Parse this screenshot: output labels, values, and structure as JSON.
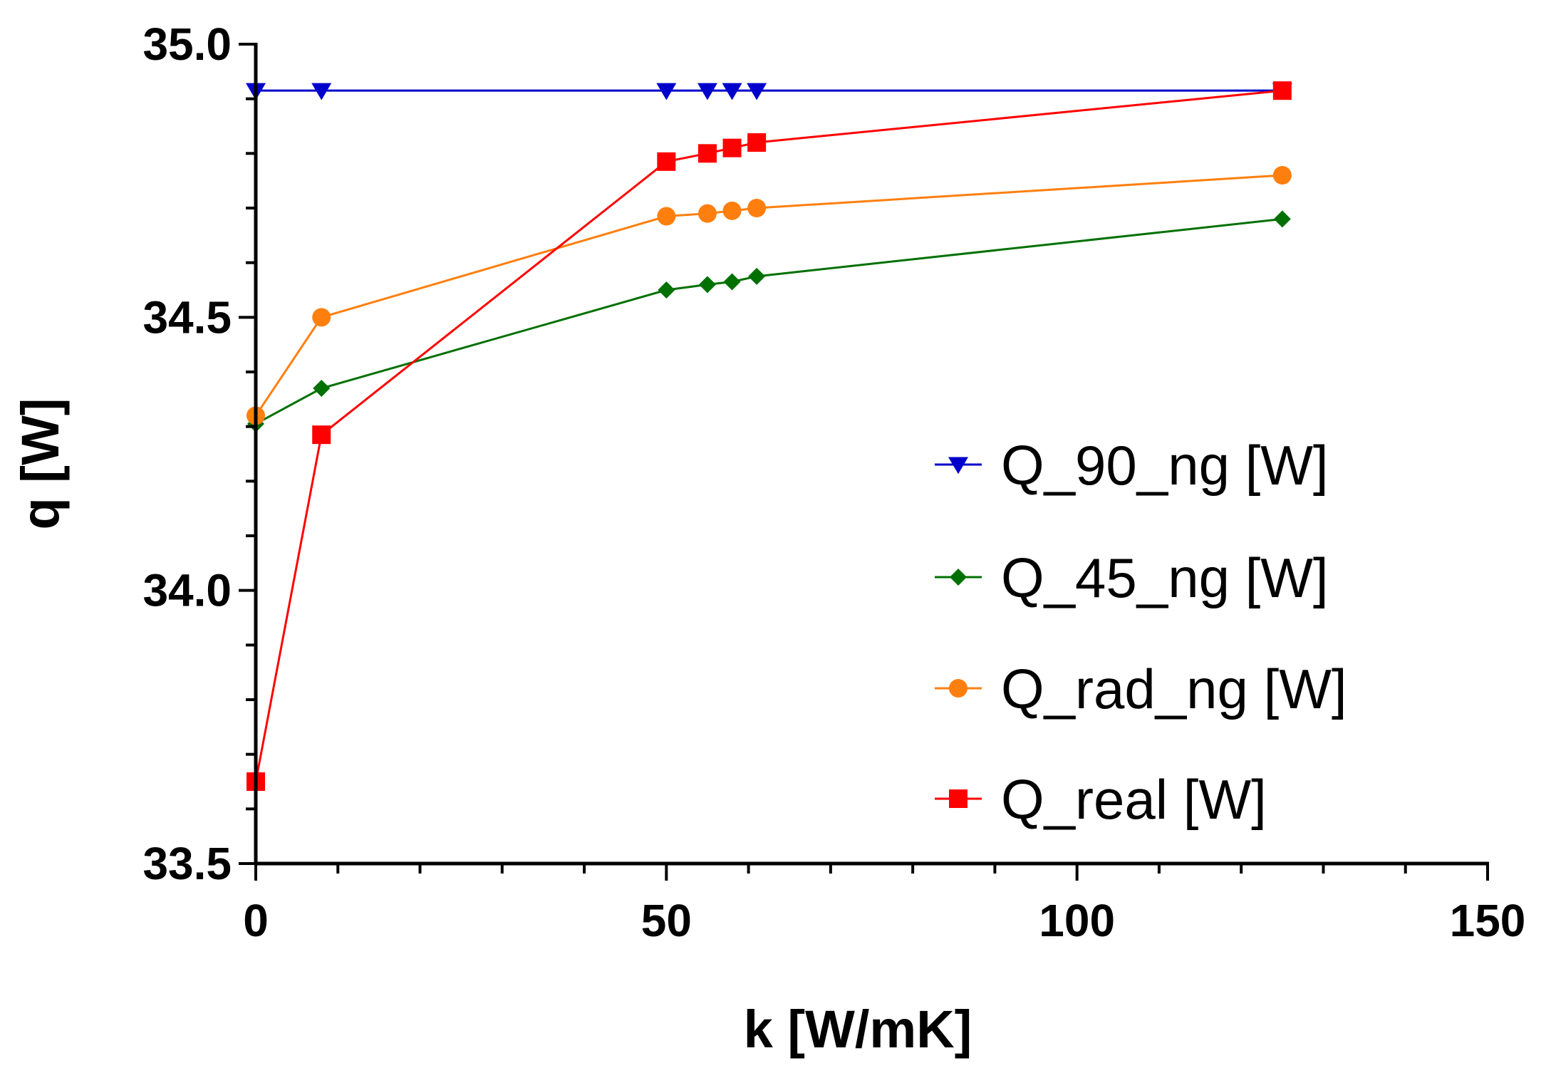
{
  "chart_data": {
    "type": "line",
    "title": "",
    "xlabel": "k [W/mK]",
    "ylabel": "q [W]",
    "xlim": [
      0,
      150
    ],
    "ylim": [
      33.5,
      35.0
    ],
    "xticks": [
      0,
      50,
      100,
      150
    ],
    "xtick_labels": [
      "0",
      "50",
      "100",
      "150"
    ],
    "yticks": [
      33.5,
      34.0,
      34.5,
      35.0
    ],
    "ytick_labels": [
      "33.5",
      "34.0",
      "34.5",
      "35.0"
    ],
    "x": [
      0,
      8,
      50,
      55,
      58,
      61,
      125
    ],
    "legend_position": "right",
    "series": [
      {
        "name": "Q_90_ng [W]",
        "color": "#0000cc",
        "marker": "triangle-down",
        "values": [
          34.915,
          34.915,
          34.915,
          34.915,
          34.915,
          34.915,
          34.915
        ]
      },
      {
        "name": "Q_45_ng [W]",
        "color": "#007000",
        "marker": "diamond",
        "values": [
          34.305,
          34.37,
          34.55,
          34.56,
          34.565,
          34.575,
          34.68
        ]
      },
      {
        "name": "Q_rad_ng [W]",
        "color": "#ff7f0e",
        "marker": "circle",
        "values": [
          34.32,
          34.5,
          34.685,
          34.69,
          34.695,
          34.7,
          34.76
        ]
      },
      {
        "name": "Q_real [W]",
        "color": "#ff0000",
        "marker": "square",
        "values": [
          33.65,
          34.285,
          34.785,
          34.8,
          34.81,
          34.82,
          34.915
        ]
      }
    ]
  }
}
